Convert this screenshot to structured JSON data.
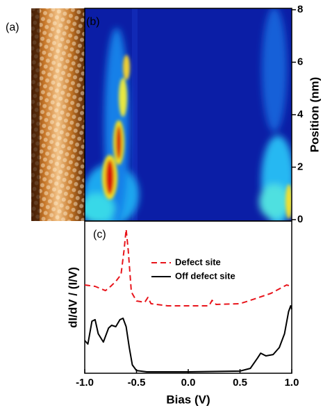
{
  "chart_data": [
    {
      "type": "image",
      "label": "(a)"
    },
    {
      "type": "heatmap",
      "label": "(b)",
      "ylabel": "Position (nm)",
      "ylim": [
        0,
        8
      ],
      "yticks": [
        0,
        2,
        4,
        6,
        8
      ]
    },
    {
      "type": "line",
      "label": "(c)",
      "xlabel": "Bias (V)",
      "ylabel": "dI/dV / (I/V)",
      "xlim": [
        -1,
        1
      ],
      "xticks": [
        {
          "value": -1,
          "label": "-1.0"
        },
        -0.5,
        {
          "value": 0,
          "label": "0.0"
        },
        0.5,
        {
          "value": 1,
          "label": "1.0"
        }
      ],
      "ylim": [
        0,
        10
      ],
      "series": [
        {
          "name": "Defect site",
          "color": "#e8141b",
          "dash": true,
          "x": [
            -1.0,
            -0.9,
            -0.8,
            -0.75,
            -0.7,
            -0.65,
            -0.62,
            -0.6,
            -0.58,
            -0.55,
            -0.5,
            -0.42,
            -0.39,
            -0.36,
            -0.2,
            0.2,
            0.23,
            0.27,
            0.5,
            0.6,
            0.8,
            0.95,
            1.0
          ],
          "values": [
            5.8,
            5.71,
            5.43,
            5.71,
            6.03,
            6.48,
            8.08,
            9.45,
            8.08,
            5.34,
            4.75,
            4.66,
            4.98,
            4.57,
            4.43,
            4.43,
            4.79,
            4.52,
            4.57,
            4.79,
            5.25,
            5.8,
            5.71
          ]
        },
        {
          "name": "Off defect site",
          "color": "#000000",
          "dash": false,
          "x": [
            -1.0,
            -0.97,
            -0.93,
            -0.9,
            -0.87,
            -0.82,
            -0.77,
            -0.74,
            -0.7,
            -0.66,
            -0.63,
            -0.6,
            -0.57,
            -0.54,
            -0.5,
            -0.4,
            0.0,
            0.5,
            0.6,
            0.67,
            0.7,
            0.75,
            0.82,
            0.88,
            0.93,
            0.97,
            0.99,
            1.0
          ],
          "values": [
            2.15,
            1.92,
            3.42,
            3.52,
            2.6,
            2.05,
            2.97,
            3.15,
            3.06,
            3.52,
            3.61,
            3.06,
            1.69,
            0.55,
            0.18,
            0.09,
            0.09,
            0.14,
            0.32,
            1.0,
            1.32,
            1.14,
            1.23,
            1.69,
            2.6,
            4.06,
            4.43,
            4.2
          ]
        }
      ]
    }
  ]
}
